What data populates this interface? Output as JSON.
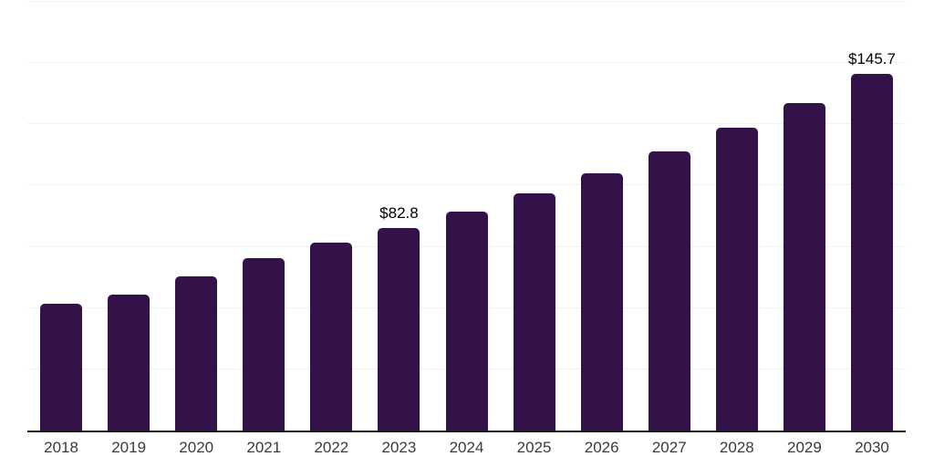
{
  "chart_data": {
    "type": "bar",
    "title": "",
    "categories": [
      "2018",
      "2019",
      "2020",
      "2021",
      "2022",
      "2023",
      "2024",
      "2025",
      "2026",
      "2027",
      "2028",
      "2029",
      "2030"
    ],
    "values": [
      51.7,
      55.4,
      63.1,
      70.5,
      76.9,
      82.8,
      89.5,
      96.8,
      105.1,
      113.9,
      123.5,
      133.7,
      145.7
    ],
    "bar_labels": [
      "",
      "",
      "",
      "",
      "",
      "$82.8",
      "",
      "",
      "",
      "",
      "",
      "",
      "$145.7"
    ],
    "ylim": [
      0,
      175
    ],
    "gridline_interval": 25,
    "grid": true,
    "legend": "none",
    "xlabel": "",
    "ylabel": "",
    "colors": {
      "bar": "#33124a",
      "axis": "#1a1a1a",
      "gridline": "#f0f0f2",
      "tick_label": "#3b3b3b",
      "value_label": "#000000",
      "background": "#ffffff"
    }
  }
}
